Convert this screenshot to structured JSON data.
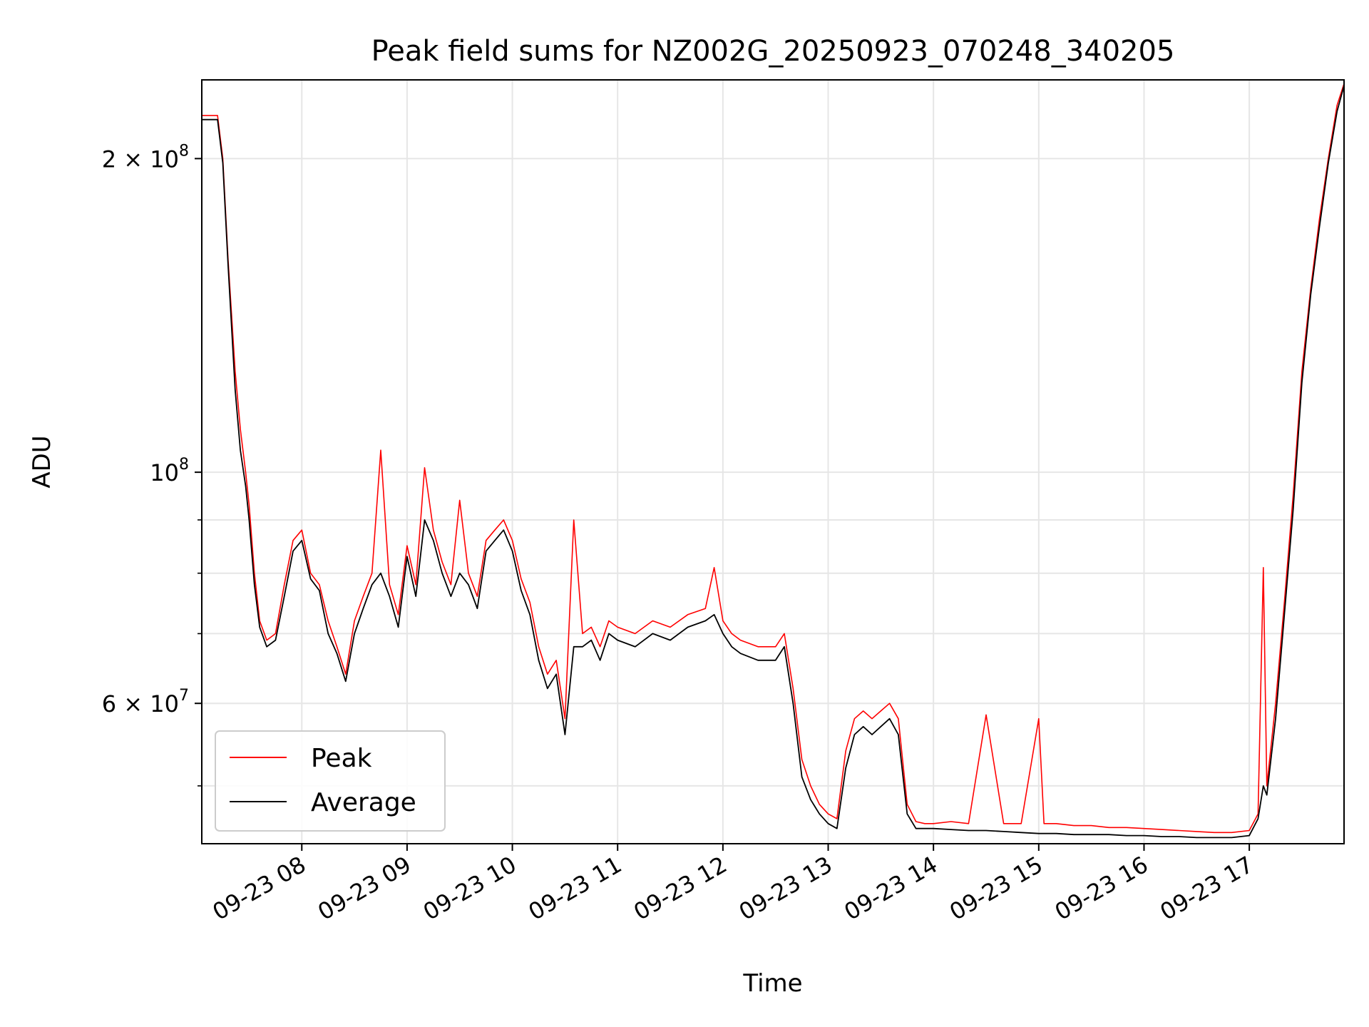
{
  "chart_data": {
    "type": "line",
    "title": "Peak field sums for NZ002G_20250923_070248_340205",
    "xlabel": "Time",
    "ylabel": "ADU",
    "y_scale": "log",
    "ylim": [
      44000000,
      238000000
    ],
    "xlim": [
      "2025-09-23 07:03",
      "2025-09-23 17:54"
    ],
    "x_ticks": [
      "09-23 08",
      "09-23 09",
      "09-23 10",
      "09-23 11",
      "09-23 12",
      "09-23 13",
      "09-23 14",
      "09-23 15",
      "09-23 16",
      "09-23 17"
    ],
    "y_ticks": [
      {
        "value": 200000000,
        "mantissa": "2",
        "exponent": "8"
      },
      {
        "value": 100000000,
        "mantissa": "",
        "exponent": "8"
      },
      {
        "value": 60000000,
        "mantissa": "6",
        "exponent": "7"
      }
    ],
    "y_minor_ticks": [
      50000000,
      70000000,
      80000000,
      90000000
    ],
    "grid": true,
    "legend_position": "lower-left",
    "series_colors": {
      "peak": "#ff0000",
      "average": "#000000"
    },
    "series": [
      {
        "name": "Peak",
        "x": [
          "07:03",
          "07:12",
          "07:15",
          "07:18",
          "07:22",
          "07:25",
          "07:28",
          "07:30",
          "07:33",
          "07:36",
          "07:40",
          "07:45",
          "07:50",
          "07:55",
          "08:00",
          "08:05",
          "08:10",
          "08:15",
          "08:20",
          "08:25",
          "08:30",
          "08:35",
          "08:40",
          "08:45",
          "08:50",
          "08:55",
          "09:00",
          "09:05",
          "09:10",
          "09:15",
          "09:20",
          "09:25",
          "09:30",
          "09:35",
          "09:40",
          "09:45",
          "09:50",
          "09:55",
          "10:00",
          "10:05",
          "10:10",
          "10:15",
          "10:20",
          "10:25",
          "10:30",
          "10:35",
          "10:40",
          "10:45",
          "10:50",
          "10:55",
          "11:00",
          "11:10",
          "11:20",
          "11:30",
          "11:40",
          "11:50",
          "11:55",
          "12:00",
          "12:05",
          "12:10",
          "12:20",
          "12:30",
          "12:35",
          "12:40",
          "12:45",
          "12:50",
          "12:55",
          "13:00",
          "13:05",
          "13:10",
          "13:15",
          "13:20",
          "13:25",
          "13:30",
          "13:35",
          "13:40",
          "13:45",
          "13:50",
          "13:55",
          "14:00",
          "14:10",
          "14:20",
          "14:30",
          "14:40",
          "14:50",
          "15:00",
          "15:03",
          "15:10",
          "15:20",
          "15:30",
          "15:40",
          "15:50",
          "16:00",
          "16:10",
          "16:20",
          "16:30",
          "16:40",
          "16:50",
          "17:00",
          "17:05",
          "17:08",
          "17:10",
          "17:15",
          "17:20",
          "17:25",
          "17:30",
          "17:35",
          "17:40",
          "17:45",
          "17:50",
          "17:54"
        ],
        "y": [
          220000000,
          220000000,
          200000000,
          160000000,
          125000000,
          110000000,
          100000000,
          93000000,
          80000000,
          72000000,
          69000000,
          70000000,
          78000000,
          86000000,
          88000000,
          80000000,
          78000000,
          72000000,
          68000000,
          64000000,
          72000000,
          76000000,
          80000000,
          105000000,
          78000000,
          73000000,
          85000000,
          78000000,
          101000000,
          88000000,
          82000000,
          78000000,
          94000000,
          80000000,
          76000000,
          86000000,
          88000000,
          90000000,
          86000000,
          79000000,
          75000000,
          68000000,
          64000000,
          66000000,
          58000000,
          90000000,
          70000000,
          71000000,
          68000000,
          72000000,
          71000000,
          70000000,
          72000000,
          71000000,
          73000000,
          74000000,
          81000000,
          72000000,
          70000000,
          69000000,
          68000000,
          68000000,
          70000000,
          62000000,
          53000000,
          50000000,
          48000000,
          47000000,
          46500000,
          54000000,
          58000000,
          59000000,
          58000000,
          59000000,
          60000000,
          58000000,
          48000000,
          46200000,
          46000000,
          46000000,
          46200000,
          46000000,
          58500000,
          46000000,
          46000000,
          58000000,
          46000000,
          46000000,
          45800000,
          45800000,
          45600000,
          45600000,
          45500000,
          45400000,
          45300000,
          45200000,
          45100000,
          45100000,
          45300000,
          47000000,
          81000000,
          50000000,
          60000000,
          75000000,
          95000000,
          125000000,
          150000000,
          175000000,
          200000000,
          225000000,
          236000000
        ]
      },
      {
        "name": "Average",
        "x": [
          "07:03",
          "07:12",
          "07:15",
          "07:18",
          "07:22",
          "07:25",
          "07:28",
          "07:30",
          "07:33",
          "07:36",
          "07:40",
          "07:45",
          "07:50",
          "07:55",
          "08:00",
          "08:05",
          "08:10",
          "08:15",
          "08:20",
          "08:25",
          "08:30",
          "08:35",
          "08:40",
          "08:45",
          "08:50",
          "08:55",
          "09:00",
          "09:05",
          "09:10",
          "09:15",
          "09:20",
          "09:25",
          "09:30",
          "09:35",
          "09:40",
          "09:45",
          "09:50",
          "09:55",
          "10:00",
          "10:05",
          "10:10",
          "10:15",
          "10:20",
          "10:25",
          "10:30",
          "10:35",
          "10:40",
          "10:45",
          "10:50",
          "10:55",
          "11:00",
          "11:10",
          "11:20",
          "11:30",
          "11:40",
          "11:50",
          "11:55",
          "12:00",
          "12:05",
          "12:10",
          "12:20",
          "12:30",
          "12:35",
          "12:40",
          "12:45",
          "12:50",
          "12:55",
          "13:00",
          "13:05",
          "13:10",
          "13:15",
          "13:20",
          "13:25",
          "13:30",
          "13:35",
          "13:40",
          "13:45",
          "13:50",
          "13:55",
          "14:00",
          "14:10",
          "14:20",
          "14:30",
          "14:40",
          "14:50",
          "15:00",
          "15:03",
          "15:10",
          "15:20",
          "15:30",
          "15:40",
          "15:50",
          "16:00",
          "16:10",
          "16:20",
          "16:30",
          "16:40",
          "16:50",
          "17:00",
          "17:05",
          "17:08",
          "17:10",
          "17:15",
          "17:20",
          "17:25",
          "17:30",
          "17:35",
          "17:40",
          "17:45",
          "17:50",
          "17:54"
        ],
        "y": [
          218000000,
          218000000,
          198000000,
          158000000,
          120000000,
          105000000,
          97000000,
          90000000,
          78000000,
          71000000,
          68000000,
          69000000,
          76000000,
          84000000,
          86000000,
          79000000,
          77000000,
          70000000,
          67000000,
          63000000,
          70000000,
          74000000,
          78000000,
          80000000,
          76000000,
          71000000,
          83000000,
          76000000,
          90000000,
          86000000,
          80000000,
          76000000,
          80000000,
          78000000,
          74000000,
          84000000,
          86000000,
          88000000,
          84000000,
          77000000,
          73000000,
          66000000,
          62000000,
          64000000,
          56000000,
          68000000,
          68000000,
          69000000,
          66000000,
          70000000,
          69000000,
          68000000,
          70000000,
          69000000,
          71000000,
          72000000,
          73000000,
          70000000,
          68000000,
          67000000,
          66000000,
          66000000,
          68000000,
          60000000,
          51000000,
          48500000,
          47000000,
          46000000,
          45500000,
          52000000,
          56000000,
          57000000,
          56000000,
          57000000,
          58000000,
          56000000,
          47000000,
          45500000,
          45500000,
          45500000,
          45400000,
          45300000,
          45300000,
          45200000,
          45100000,
          45000000,
          45000000,
          45000000,
          44900000,
          44900000,
          44900000,
          44800000,
          44800000,
          44700000,
          44700000,
          44600000,
          44600000,
          44600000,
          44800000,
          46500000,
          50000000,
          49000000,
          58000000,
          73000000,
          92000000,
          122000000,
          148000000,
          172000000,
          198000000,
          222000000,
          235000000
        ]
      }
    ]
  }
}
